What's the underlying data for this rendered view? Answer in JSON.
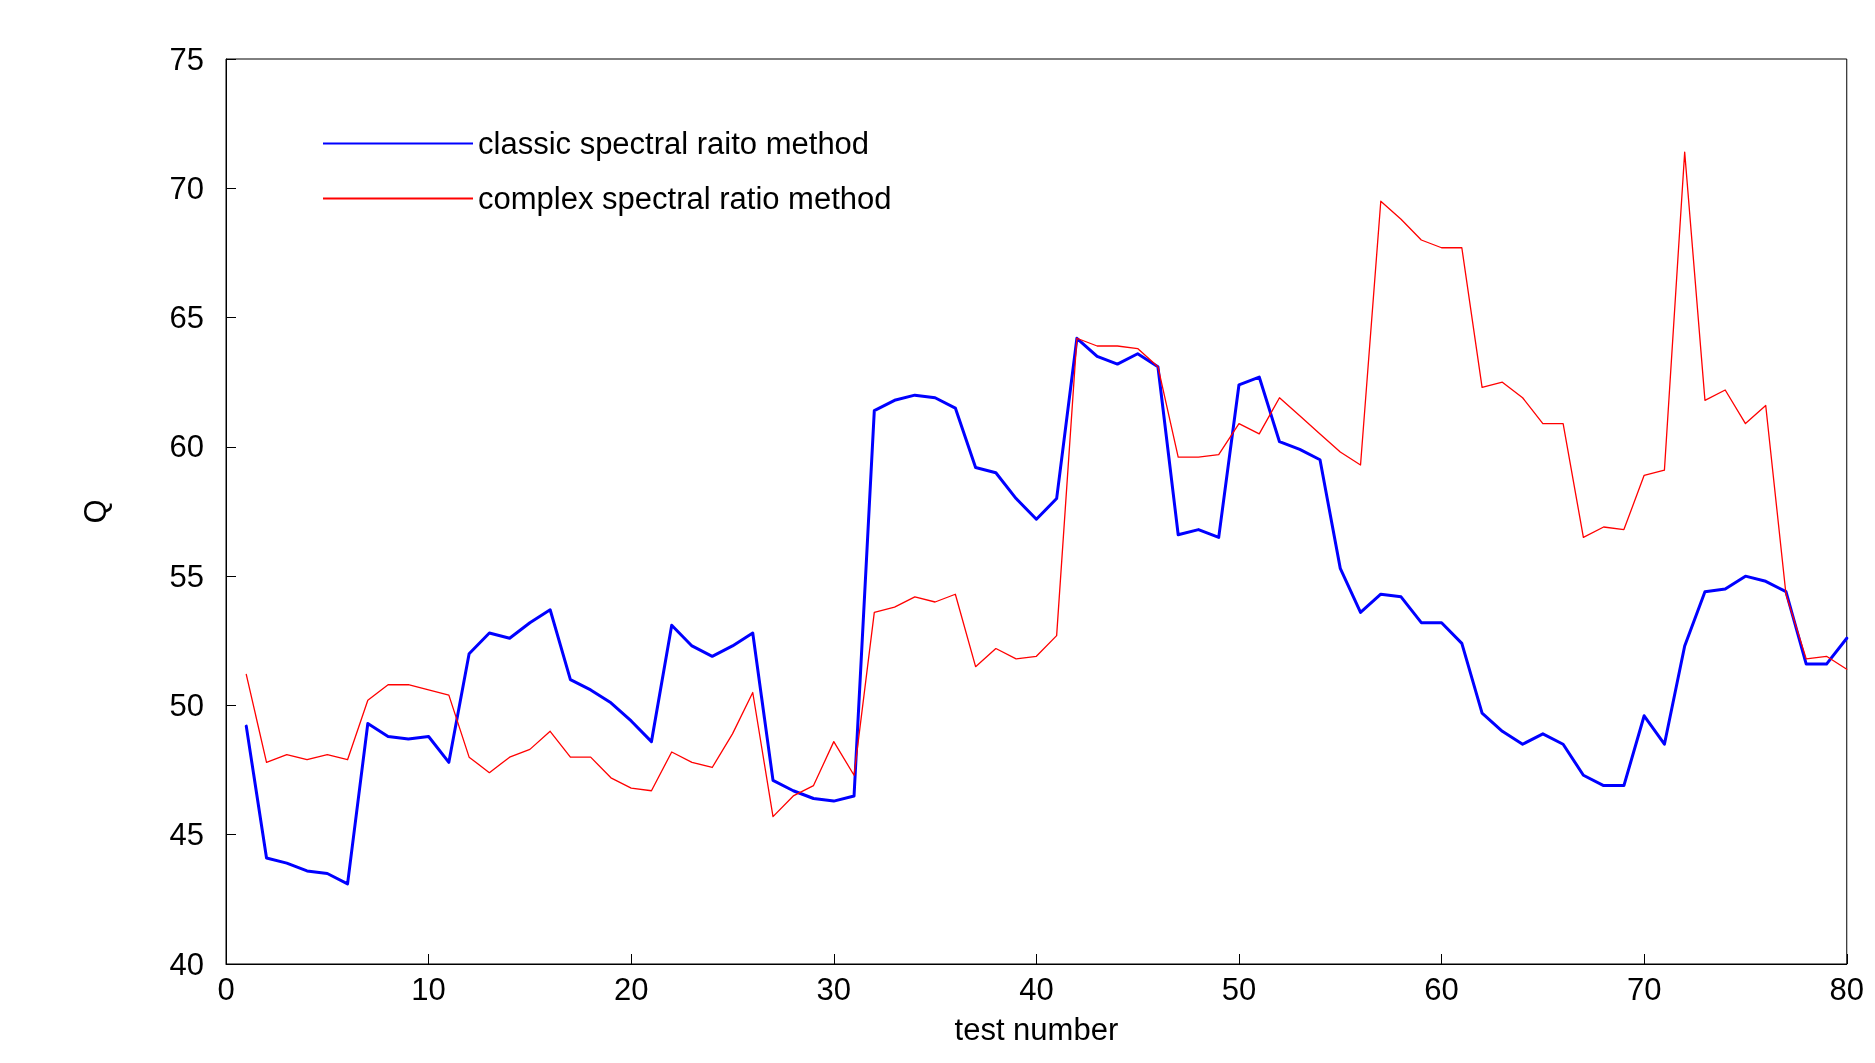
{
  "chart_data": {
    "type": "line",
    "xlabel": "test number",
    "ylabel": "Q",
    "x": [
      1,
      2,
      3,
      4,
      5,
      6,
      7,
      8,
      9,
      10,
      11,
      12,
      13,
      14,
      15,
      16,
      17,
      18,
      19,
      20,
      21,
      22,
      23,
      24,
      25,
      26,
      27,
      28,
      29,
      30,
      31,
      32,
      33,
      34,
      35,
      36,
      37,
      38,
      39,
      40,
      41,
      42,
      43,
      44,
      45,
      46,
      47,
      48,
      49,
      50,
      51,
      52,
      53,
      54,
      55,
      56,
      57,
      58,
      59,
      60,
      61,
      62,
      63,
      64,
      65,
      66,
      67,
      68,
      69,
      70,
      71,
      72,
      73,
      74,
      75,
      76,
      77,
      78,
      79,
      80
    ],
    "series": [
      {
        "name": "classic spectral raito method",
        "color": "#0000ff",
        "values": [
          49.2,
          44.1,
          43.9,
          43.6,
          43.5,
          43.1,
          49.3,
          48.8,
          48.7,
          48.8,
          47.8,
          52.0,
          52.8,
          52.6,
          53.2,
          53.7,
          51.0,
          50.6,
          50.1,
          49.4,
          48.6,
          53.1,
          52.3,
          51.9,
          52.3,
          52.8,
          47.1,
          46.7,
          46.4,
          46.3,
          46.5,
          61.4,
          61.8,
          62.0,
          61.9,
          61.5,
          59.2,
          59.0,
          58.0,
          57.2,
          58.0,
          64.2,
          63.5,
          63.2,
          63.6,
          63.1,
          56.6,
          56.8,
          56.5,
          62.4,
          62.7,
          60.2,
          59.9,
          59.5,
          55.3,
          53.6,
          54.3,
          54.2,
          53.2,
          53.2,
          52.4,
          49.7,
          49.0,
          48.5,
          48.9,
          48.5,
          47.3,
          46.9,
          46.9,
          49.6,
          48.5,
          52.3,
          54.4,
          54.5,
          55.0,
          54.8,
          54.4,
          51.6,
          51.6,
          52.6
        ]
      },
      {
        "name": "complex spectral ratio method",
        "color": "#ff0000",
        "values": [
          51.2,
          47.8,
          48.1,
          47.9,
          48.1,
          47.9,
          50.2,
          50.8,
          50.8,
          50.6,
          50.4,
          48.0,
          47.4,
          48.0,
          48.3,
          49.0,
          48.0,
          48.0,
          47.2,
          46.8,
          46.7,
          48.2,
          47.8,
          47.6,
          48.9,
          50.5,
          45.7,
          46.5,
          46.9,
          48.6,
          47.3,
          53.6,
          53.8,
          54.2,
          54.0,
          54.3,
          51.5,
          52.2,
          51.8,
          51.9,
          52.7,
          64.2,
          63.9,
          63.9,
          63.8,
          63.1,
          59.6,
          59.6,
          59.7,
          60.9,
          60.5,
          61.9,
          61.2,
          60.5,
          59.8,
          59.3,
          69.5,
          68.8,
          68.0,
          67.7,
          67.7,
          62.3,
          62.5,
          61.9,
          60.9,
          60.9,
          56.5,
          56.9,
          56.8,
          58.9,
          59.1,
          71.4,
          61.8,
          62.2,
          60.9,
          61.6,
          54.3,
          51.8,
          51.9,
          51.4
        ]
      }
    ],
    "xlim": [
      0,
      80
    ],
    "xticks": [
      0,
      10,
      20,
      30,
      40,
      50,
      60,
      70,
      80
    ],
    "ylim": [
      40,
      75
    ],
    "yticks": [
      40,
      45,
      50,
      55,
      60,
      65,
      70,
      75
    ],
    "grid": false,
    "legend": "top left",
    "marker": "none",
    "line_style": "solid"
  }
}
